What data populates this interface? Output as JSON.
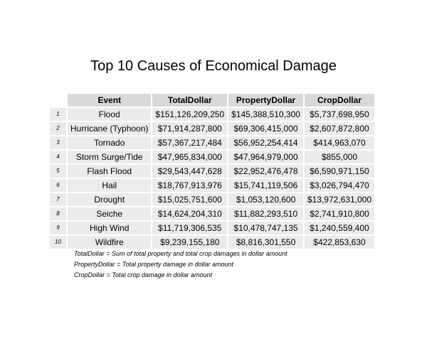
{
  "chart_data": {
    "type": "table",
    "title": "Top 10 Causes of Economical Damage",
    "columns": [
      "Event",
      "TotalDollar",
      "PropertyDollar",
      "CropDollar"
    ],
    "rows": [
      {
        "index": "1",
        "cells": [
          "Flood",
          "$151,126,209,250",
          "$145,388,510,300",
          "$5,737,698,950"
        ]
      },
      {
        "index": "2",
        "cells": [
          "Hurricane (Typhoon)",
          "$71,914,287,800",
          "$69,306,415,000",
          "$2,607,872,800"
        ]
      },
      {
        "index": "3",
        "cells": [
          "Tornado",
          "$57,367,217,484",
          "$56,952,254,414",
          "$414,963,070"
        ]
      },
      {
        "index": "4",
        "cells": [
          "Storm Surge/Tide",
          "$47,965,834,000",
          "$47,964,979,000",
          "$855,000"
        ]
      },
      {
        "index": "5",
        "cells": [
          "Flash Flood",
          "$29,543,447,628",
          "$22,952,476,478",
          "$6,590,971,150"
        ]
      },
      {
        "index": "6",
        "cells": [
          "Hail",
          "$18,767,913,976",
          "$15,741,119,506",
          "$3,026,794,470"
        ]
      },
      {
        "index": "7",
        "cells": [
          "Drought",
          "$15,025,751,600",
          "$1,053,120,600",
          "$13,972,631,000"
        ]
      },
      {
        "index": "8",
        "cells": [
          "Seiche",
          "$14,624,204,310",
          "$11,882,293,510",
          "$2,741,910,800"
        ]
      },
      {
        "index": "9",
        "cells": [
          "High Wind",
          "$11,719,306,535",
          "$10,478,747,135",
          "$1,240,559,400"
        ]
      },
      {
        "index": "10",
        "cells": [
          "Wildfire",
          "$9,239,155,180",
          "$8,816,301,550",
          "$422,853,630"
        ]
      }
    ],
    "footnotes": [
      "TotalDollar = Sum of total property and total crop damages in dollar amount",
      "PropertyDollar = Total property damage in dollar amount",
      "CropDollar = Total crop damage in dollar amount"
    ]
  },
  "colors": {
    "header_fill": "#d9d9d9",
    "cell_fill": "#ebebeb"
  }
}
